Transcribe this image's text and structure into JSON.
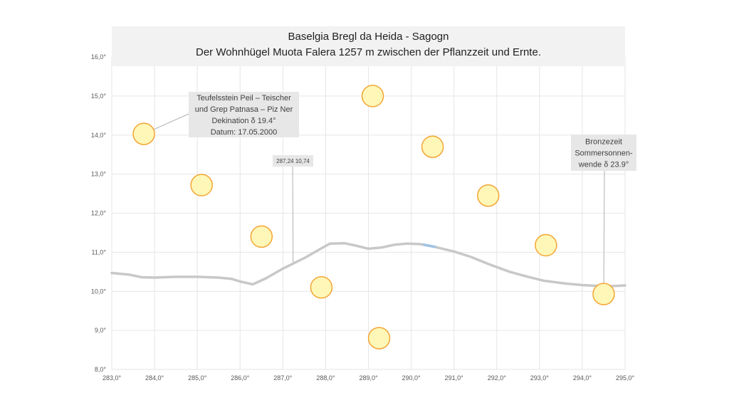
{
  "chart_data": {
    "type": "scatter",
    "title": "Baselgia Bregl da Heida - Sagogn",
    "subtitle": "Der Wohnhügel Muota Falera 1257 m  zwischen der Pflanzzeit und Ernte.",
    "xlim": [
      283,
      295
    ],
    "ylim": [
      8,
      16
    ],
    "x_ticks": [
      "283,0°",
      "284,0°",
      "285,0°",
      "286,0°",
      "287,0°",
      "288,0°",
      "289,0°",
      "290,0°",
      "291,0°",
      "292,0°",
      "293,0°",
      "294,0°",
      "295,0°"
    ],
    "y_ticks": [
      "8,0°",
      "9,0°",
      "10,0°",
      "11,0°",
      "12,0°",
      "13,0°",
      "14,0°",
      "15,0°",
      "16,0°"
    ],
    "grid": true,
    "horizon": {
      "points": [
        [
          283.0,
          10.47
        ],
        [
          283.4,
          10.43
        ],
        [
          283.7,
          10.36
        ],
        [
          284.0,
          10.35
        ],
        [
          284.5,
          10.37
        ],
        [
          285.0,
          10.37
        ],
        [
          285.5,
          10.35
        ],
        [
          285.8,
          10.32
        ],
        [
          286.0,
          10.25
        ],
        [
          286.3,
          10.18
        ],
        [
          286.6,
          10.33
        ],
        [
          287.0,
          10.58
        ],
        [
          287.5,
          10.85
        ],
        [
          287.9,
          11.1
        ],
        [
          288.1,
          11.22
        ],
        [
          288.45,
          11.23
        ],
        [
          288.7,
          11.17
        ],
        [
          289.0,
          11.09
        ],
        [
          289.3,
          11.12
        ],
        [
          289.6,
          11.19
        ],
        [
          289.9,
          11.22
        ],
        [
          290.2,
          11.21
        ],
        [
          290.5,
          11.15
        ],
        [
          291.0,
          11.02
        ],
        [
          291.4,
          10.88
        ],
        [
          291.8,
          10.7
        ],
        [
          292.3,
          10.5
        ],
        [
          292.7,
          10.38
        ],
        [
          293.1,
          10.27
        ],
        [
          293.6,
          10.2
        ],
        [
          294.0,
          10.16
        ],
        [
          294.5,
          10.13
        ],
        [
          294.8,
          10.14
        ],
        [
          295.0,
          10.15
        ]
      ],
      "highlight": [
        [
          290.3,
          11.19
        ],
        [
          290.55,
          11.14
        ]
      ]
    },
    "suns": [
      {
        "x": 283.75,
        "y": 14.03
      },
      {
        "x": 285.1,
        "y": 12.72
      },
      {
        "x": 286.5,
        "y": 11.4
      },
      {
        "x": 287.9,
        "y": 10.1
      },
      {
        "x": 289.1,
        "y": 15.0
      },
      {
        "x": 289.25,
        "y": 8.8
      },
      {
        "x": 290.5,
        "y": 13.7
      },
      {
        "x": 291.8,
        "y": 12.45
      },
      {
        "x": 293.15,
        "y": 11.18
      },
      {
        "x": 294.5,
        "y": 9.93
      }
    ],
    "annotations": [
      {
        "lines": [
          "Teufelsstein Peil – Teischer",
          "und Grep Patnasa – Piz Ner",
          "Dekination δ 19.4°",
          "Datum: 17.05.2000"
        ],
        "target_x": 283.75,
        "target_y": 14.03
      },
      {
        "lines": [
          "287,24 10,74"
        ],
        "target_x": 287.24,
        "target_y": 10.74
      },
      {
        "lines": [
          "Bronzezeit",
          "Sommersonnen-",
          "wende δ 23.9°"
        ],
        "target_x": 294.5,
        "target_y": 9.93
      }
    ],
    "colors": {
      "horizon": "#c8c8c8",
      "highlight": "#9dc3e6",
      "sun_fill": "#fff7b8",
      "sun_stroke": "#f4a534",
      "grid": "#e6e6e6",
      "title_band": "#f2f2f2",
      "callout_bg": "#e7e7e7"
    }
  }
}
